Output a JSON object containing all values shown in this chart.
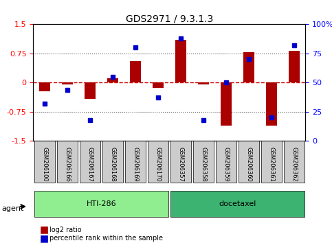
{
  "title": "GDS2971 / 9.3.1.3",
  "samples": [
    "GSM206100",
    "GSM206166",
    "GSM206167",
    "GSM206168",
    "GSM206169",
    "GSM206170",
    "GSM206357",
    "GSM206358",
    "GSM206359",
    "GSM206360",
    "GSM206361",
    "GSM206362"
  ],
  "log2_ratio": [
    -0.22,
    -0.04,
    -0.42,
    0.12,
    0.55,
    -0.14,
    1.1,
    -0.04,
    -1.1,
    0.78,
    -1.1,
    0.82
  ],
  "percentile_rank": [
    32,
    44,
    18,
    55,
    80,
    37,
    88,
    18,
    50,
    70,
    20,
    82
  ],
  "groups": [
    {
      "label": "HTI-286",
      "start": 0,
      "end": 5,
      "color": "#90EE90"
    },
    {
      "label": "docetaxel",
      "start": 6,
      "end": 11,
      "color": "#3CB371"
    }
  ],
  "bar_color": "#AA0000",
  "dot_color": "#0000CC",
  "zero_line_color": "#CC0000",
  "ylim": [
    -1.5,
    1.5
  ],
  "yticks_left": [
    -1.5,
    -0.75,
    0,
    0.75,
    1.5
  ],
  "yticks_right": [
    0,
    25,
    50,
    75,
    100
  ],
  "grid_color": "#555555",
  "bg_plot": "#000000",
  "legend_red_label": "log2 ratio",
  "legend_blue_label": "percentile rank within the sample",
  "agent_label": "agent",
  "xlabel_rotation": 270
}
